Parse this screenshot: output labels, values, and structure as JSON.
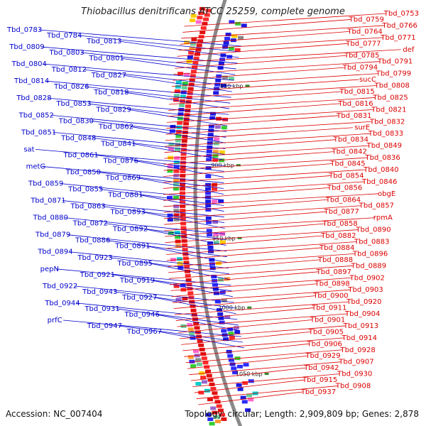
{
  "title": "Thiobacillus denitrificans ATCC 25259, complete genome",
  "footer": {
    "accession": "Accession: NC_007404",
    "summary": "Topology: circular; Length: 2,909,809 bp; Genes: 2,878"
  },
  "colors": {
    "left_labels": "#0000cc",
    "right_labels": "#dd0000",
    "backbone": "#8a8a8a",
    "tick": "#2e8b2e"
  },
  "scale_ticks": [
    "850 kbp",
    "900 kbp",
    "950 kbp",
    "1000 kbp",
    "1050 kbp"
  ],
  "left_labels": [
    "Tbd_0783",
    "Tbd_0784",
    "Tbd_0813",
    "Tbd_0809",
    "Tbd_0803",
    "Tbd_0801",
    "Tbd_0804",
    "Tbd_0812",
    "Tbd_0827",
    "Tbd_0814",
    "Tbd_0826",
    "Tbd_0818",
    "Tbd_0828",
    "Tbd_0853",
    "Tbd_0829",
    "Tbd_0852",
    "Tbd_0830",
    "Tbd_0862",
    "Tbd_0851",
    "Tbd_0848",
    "Tbd_0841",
    "sat",
    "Tbd_0861",
    "Tbd_0876",
    "metG",
    "Tbd_0850",
    "Tbd_0869",
    "Tbd_0859",
    "Tbd_0855",
    "Tbd_0881",
    "Tbd_0871",
    "Tbd_0863",
    "Tbd_0893",
    "Tbd_0880",
    "Tbd_0872",
    "Tbd_0892",
    "Tbd_0879",
    "Tbd_0886",
    "Tbd_0891",
    "Tbd_0894",
    "Tbd_0923",
    "Tbd_0895",
    "pepN",
    "Tbd_0921",
    "Tbd_0919",
    "Tbd_0922",
    "Tbd_0943",
    "Tbd_0927",
    "Tbd_0944",
    "Tbd_0931",
    "Tbd_0946",
    "prfC",
    "Tbd_0947",
    "Tbd_0967"
  ],
  "right_labels": [
    "Tbd_0753",
    "Tbd_0759",
    "Tbd_0766",
    "Tbd_0764",
    "Tbd_0771",
    "Tbd_0777",
    "def",
    "Tbd_0785",
    "Tbd_0791",
    "Tbd_0794",
    "Tbd_0799",
    "sucC",
    "Tbd_0808",
    "Tbd_0815",
    "Tbd_0825",
    "Tbd_0816",
    "Tbd_0821",
    "Tbd_0831",
    "Tbd_0832",
    "surE",
    "Tbd_0833",
    "Tbd_0834",
    "Tbd_0849",
    "Tbd_0842",
    "Tbd_0836",
    "Tbd_0845",
    "Tbd_0840",
    "Tbd_0854",
    "Tbd_0846",
    "Tbd_0856",
    "obgE",
    "Tbd_0864",
    "Tbd_0857",
    "Tbd_0877",
    "rpmA",
    "Tbd_0858",
    "Tbd_0890",
    "Tbd_0882",
    "Tbd_0883",
    "Tbd_0884",
    "Tbd_0896",
    "Tbd_0888",
    "Tbd_0889",
    "Tbd_0897",
    "Tbd_0902",
    "Tbd_0898",
    "Tbd_0903",
    "Tbd_0900",
    "Tbd_0920",
    "Tbd_0911",
    "Tbd_0904",
    "Tbd_0901",
    "Tbd_0913",
    "Tbd_0905",
    "Tbd_0914",
    "Tbd_0906",
    "Tbd_0928",
    "Tbd_0929",
    "Tbd_0907",
    "Tbd_0942",
    "Tbd_0930",
    "Tbd_0915",
    "Tbd_0908",
    "Tbd_0937"
  ]
}
